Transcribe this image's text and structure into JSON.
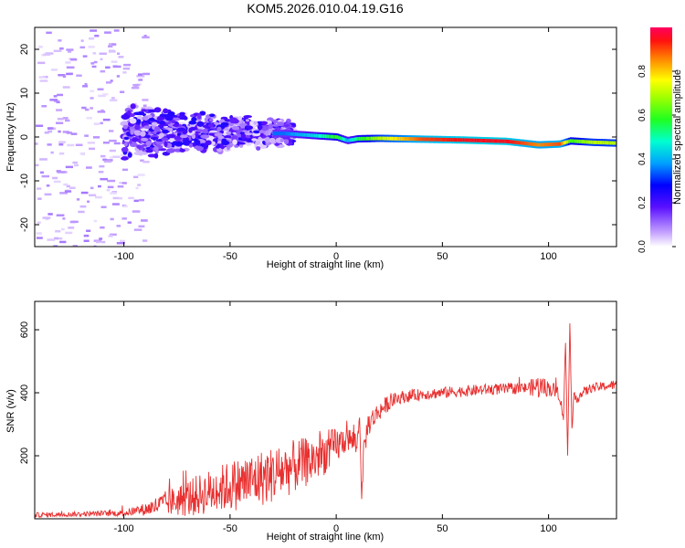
{
  "page_title": "KOM5.2026.010.04.19.G16",
  "chart_data": [
    {
      "type": "heatmap",
      "title": "KOM5.2026.010.04.19.G16",
      "xlabel": "Height of straight line (km)",
      "ylabel": "Frequency (Hz)",
      "xlim": [
        -142,
        132
      ],
      "ylim": [
        -25,
        25
      ],
      "xticks": [
        -100,
        -50,
        0,
        50,
        100
      ],
      "yticks": [
        -20,
        -10,
        0,
        10,
        20
      ],
      "colorbar": {
        "label": "Normalized spectral amplitude",
        "range": [
          0.0,
          1.0
        ],
        "ticks": [
          "0.0",
          "0.2",
          "0.4",
          "0.6",
          "0.8"
        ],
        "tick_values": [
          0.0,
          0.2,
          0.4,
          0.6,
          0.8
        ]
      },
      "ridge": {
        "description_points_x": [
          -25,
          -10,
          0,
          5,
          10,
          20,
          40,
          60,
          80,
          95,
          105,
          110,
          120,
          132
        ],
        "frequency_y": [
          0.8,
          0.3,
          0.0,
          -0.8,
          -0.4,
          -0.3,
          -0.5,
          -0.7,
          -1.0,
          -1.8,
          -1.6,
          -0.9,
          -1.2,
          -1.4
        ],
        "amplitude": [
          0.35,
          0.45,
          0.6,
          0.4,
          0.55,
          0.7,
          0.9,
          0.95,
          0.95,
          0.85,
          0.9,
          0.6,
          0.7,
          0.7
        ]
      },
      "scatter_region": {
        "dense_x_range": [
          -100,
          -20
        ],
        "dense_freq_range": [
          -6,
          8
        ],
        "sparse_x_range": [
          -142,
          -100
        ],
        "sparse_freq_range": [
          -25,
          25
        ],
        "amplitude_range": [
          0.02,
          0.25
        ]
      }
    },
    {
      "type": "line",
      "xlabel": "Height of straight line (km)",
      "ylabel": "SNR (v/v)",
      "xlim": [
        -142,
        132
      ],
      "ylim": [
        0,
        690
      ],
      "xticks": [
        -100,
        -50,
        0,
        50,
        100
      ],
      "yticks": [
        200,
        400,
        600
      ],
      "color": "#e83030",
      "series": [
        {
          "name": "SNR",
          "x": [
            -142,
            -120,
            -100,
            -90,
            -80,
            -70,
            -60,
            -50,
            -40,
            -30,
            -20,
            -10,
            0,
            5,
            10,
            11,
            12,
            13,
            15,
            20,
            25,
            30,
            40,
            50,
            60,
            70,
            80,
            90,
            95,
            100,
            105,
            107,
            108,
            109,
            110,
            111,
            112,
            120,
            132
          ],
          "base": [
            12,
            15,
            18,
            30,
            50,
            65,
            85,
            105,
            120,
            140,
            165,
            190,
            230,
            255,
            240,
            330,
            60,
            220,
            300,
            340,
            370,
            385,
            395,
            400,
            405,
            410,
            412,
            415,
            420,
            415,
            400,
            320,
            560,
            200,
            630,
            280,
            380,
            415,
            425
          ],
          "noise": [
            8,
            8,
            10,
            20,
            40,
            60,
            70,
            80,
            90,
            90,
            85,
            75,
            60,
            40,
            40,
            10,
            10,
            40,
            40,
            30,
            25,
            20,
            18,
            18,
            18,
            18,
            18,
            18,
            40,
            25,
            25,
            10,
            10,
            10,
            10,
            10,
            20,
            15,
            15
          ]
        }
      ]
    }
  ]
}
